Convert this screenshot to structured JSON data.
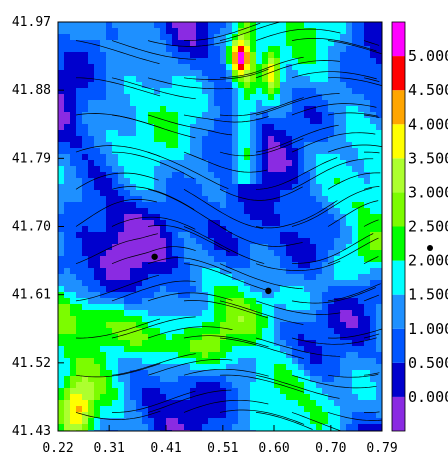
{
  "chart_data": {
    "type": "heatmap",
    "title": "",
    "xlabel": "",
    "ylabel": "",
    "x_ticks": [
      "0.22",
      "0.31",
      "0.41",
      "0.51",
      "0.60",
      "0.70",
      "0.79"
    ],
    "y_ticks": [
      "41.97",
      "41.88",
      "41.79",
      "41.70",
      "41.61",
      "41.52",
      "41.43"
    ],
    "xlim": [
      0.22,
      0.79
    ],
    "ylim": [
      41.43,
      41.97
    ],
    "colorbar": {
      "labels": [
        "0.000",
        "0.500",
        "1.000",
        "1.500",
        "2.000",
        "2.500",
        "3.000",
        "3.500",
        "4.000",
        "4.500",
        "5.000"
      ],
      "levels": [
        -0.5,
        0.0,
        0.5,
        1.0,
        1.5,
        2.0,
        2.5,
        3.0,
        3.5,
        4.0,
        4.5,
        5.0,
        5.5
      ],
      "colors": [
        "#8a2be2",
        "#0000cd",
        "#0055ff",
        "#1e90ff",
        "#00ffff",
        "#00ff00",
        "#7cfc00",
        "#adff2f",
        "#ffff00",
        "#ffa500",
        "#ff0000",
        "#ff00ff"
      ]
    },
    "overlay": "streamlines",
    "markers": [
      {
        "x": 0.39,
        "y": 41.66
      },
      {
        "x": 0.59,
        "y": 41.615
      }
    ]
  }
}
